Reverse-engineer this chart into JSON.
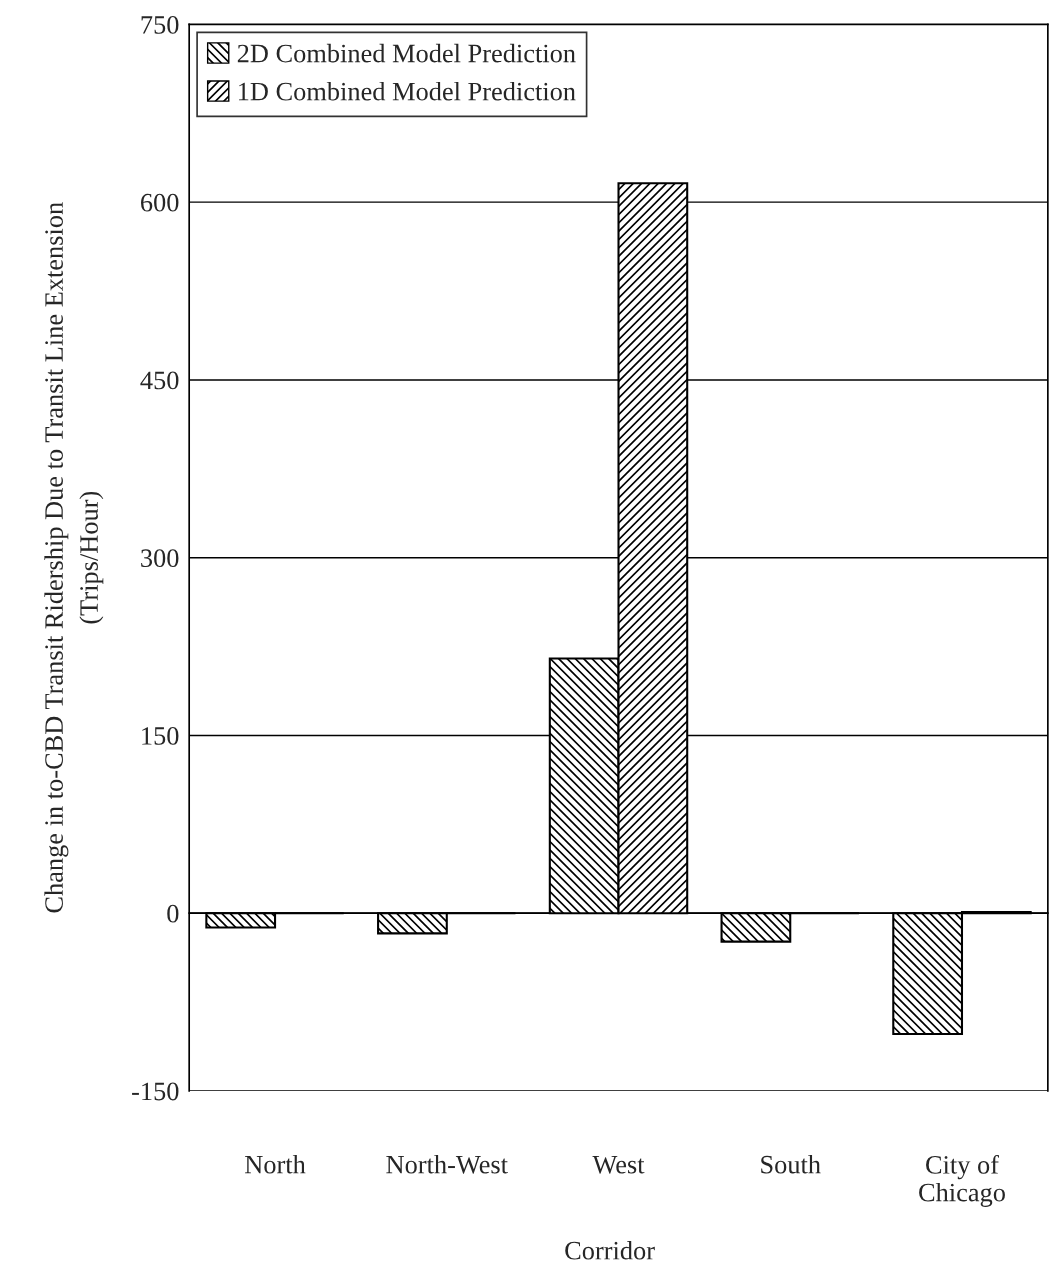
{
  "chart_data": {
    "type": "bar",
    "xlabel": "Corridor",
    "ylabel": "Change in to-CBD Transit Ridership Due to Transit Line Extension\n(Trips/Hour)",
    "categories": [
      "North",
      "North-West",
      "West",
      "South",
      "City of\nChicago"
    ],
    "series": [
      {
        "name": "2D Combined Model Prediction",
        "color": "#000000",
        "values": [
          -12,
          -17,
          215,
          -24,
          -102
        ]
      },
      {
        "name": "1D Combined Model Prediction",
        "color": "#000000",
        "values": [
          0,
          0,
          616,
          0,
          1
        ]
      }
    ],
    "ylim": [
      -150,
      750
    ],
    "yticks": [
      -150,
      0,
      150,
      300,
      450,
      600,
      750
    ],
    "grid": "y",
    "legend": "top left"
  }
}
